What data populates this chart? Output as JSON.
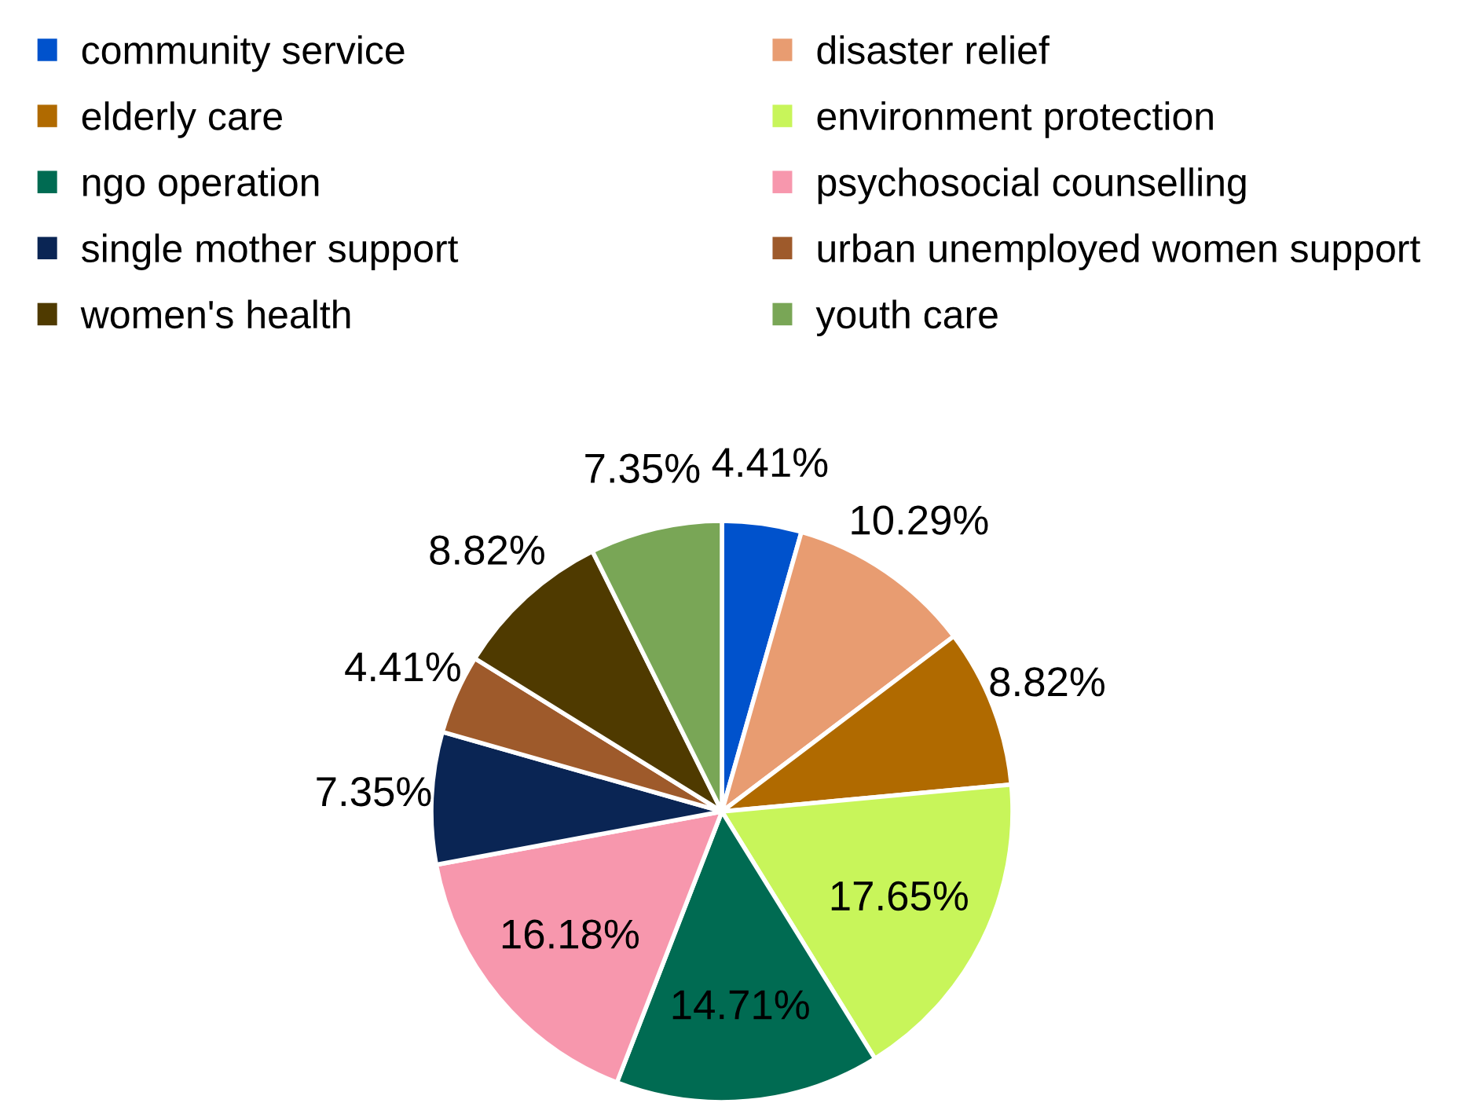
{
  "chart_data": {
    "type": "pie",
    "categories": [
      "community service",
      "disaster relief",
      "elderly care",
      "environment protection",
      "ngo operation",
      "psychosocial counselling",
      "single mother support",
      "urban unemployed women support",
      "women's health",
      "youth care"
    ],
    "values": [
      4.41,
      10.29,
      8.82,
      17.65,
      14.71,
      16.18,
      7.35,
      4.41,
      8.82,
      7.35
    ],
    "colors": [
      "#0052cc",
      "#e89c71",
      "#b06a00",
      "#c8f55a",
      "#006b52",
      "#f797ad",
      "#0a2554",
      "#9e5a2b",
      "#4f3a00",
      "#79a656"
    ],
    "value_labels": [
      "4.41%",
      "10.29%",
      "8.82%",
      "17.65%",
      "14.71%",
      "16.18%",
      "7.35%",
      "4.41%",
      "8.82%",
      "7.35%"
    ],
    "legend": "top"
  }
}
